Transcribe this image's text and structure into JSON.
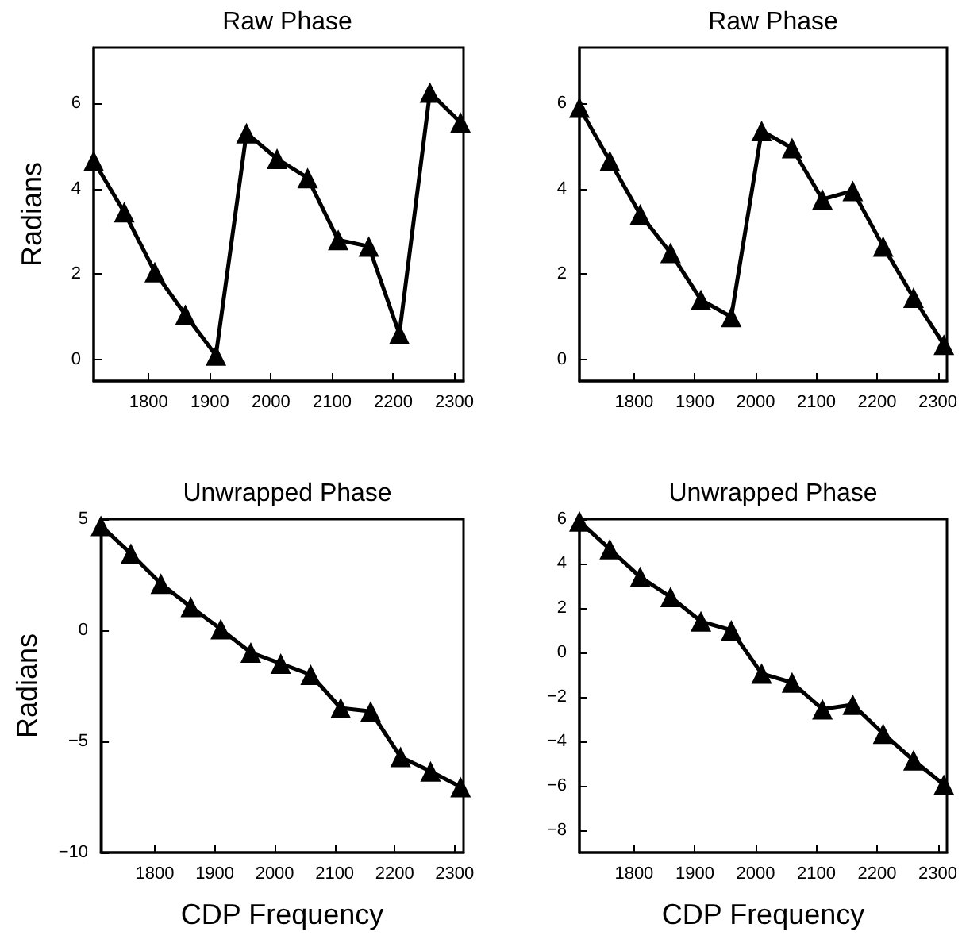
{
  "chart_data": [
    {
      "type": "line",
      "title": "Raw Phase",
      "ylabel": "Radians",
      "x": [
        1710,
        1760,
        1810,
        1860,
        1910,
        1960,
        2010,
        2060,
        2110,
        2160,
        2210,
        2260,
        2310
      ],
      "values": [
        4.65,
        3.45,
        2.05,
        1.05,
        0.1,
        5.3,
        4.7,
        4.25,
        2.8,
        2.65,
        0.6,
        6.25,
        5.55
      ],
      "color": "#000000",
      "marker": "triangle",
      "line_style": "solid",
      "xlim": [
        1710,
        2315
      ],
      "xticks": [
        1800,
        1900,
        2000,
        2100,
        2200,
        2300
      ],
      "ylim": [
        -0.5,
        7.3
      ],
      "yticks": [
        0,
        2,
        4,
        6
      ],
      "grid": false
    },
    {
      "type": "line",
      "title": "Raw Phase",
      "x": [
        1710,
        1760,
        1810,
        1860,
        1910,
        1960,
        2010,
        2060,
        2110,
        2160,
        2210,
        2260,
        2310
      ],
      "values": [
        5.9,
        4.65,
        3.4,
        2.5,
        1.4,
        1.0,
        5.35,
        4.95,
        3.75,
        3.95,
        2.65,
        1.45,
        0.35
      ],
      "color": "#000000",
      "marker": "triangle",
      "line_style": "solid",
      "xlim": [
        1710,
        2315
      ],
      "xticks": [
        1800,
        1900,
        2000,
        2100,
        2200,
        2300
      ],
      "ylim": [
        -0.5,
        7.3
      ],
      "yticks": [
        0,
        2,
        4,
        6
      ],
      "grid": false
    },
    {
      "type": "line",
      "title": "Unwrapped Phase",
      "ylabel": "Radians",
      "xlabel": "CDP Frequency",
      "x": [
        1710,
        1760,
        1810,
        1860,
        1910,
        1960,
        2010,
        2060,
        2110,
        2160,
        2210,
        2260,
        2310
      ],
      "values": [
        4.7,
        3.45,
        2.1,
        1.05,
        0.05,
        -1.0,
        -1.5,
        -2.0,
        -3.5,
        -3.65,
        -5.7,
        -6.35,
        -7.05
      ],
      "color": "#000000",
      "marker": "triangle",
      "line_style": "solid",
      "xlim": [
        1710,
        2315
      ],
      "xticks": [
        1800,
        1900,
        2000,
        2100,
        2200,
        2300
      ],
      "ylim": [
        -10,
        5
      ],
      "yticks": [
        -10,
        -5,
        0,
        5
      ],
      "grid": false
    },
    {
      "type": "line",
      "title": "Unwrapped Phase",
      "xlabel": "CDP Frequency",
      "x": [
        1710,
        1760,
        1810,
        1860,
        1910,
        1960,
        2010,
        2060,
        2110,
        2160,
        2210,
        2260,
        2310
      ],
      "values": [
        5.9,
        4.65,
        3.4,
        2.5,
        1.4,
        1.0,
        -0.95,
        -1.35,
        -2.55,
        -2.35,
        -3.65,
        -4.85,
        -5.95
      ],
      "color": "#000000",
      "marker": "triangle",
      "line_style": "solid",
      "xlim": [
        1710,
        2315
      ],
      "xticks": [
        1800,
        1900,
        2000,
        2100,
        2200,
        2300
      ],
      "ylim": [
        -9,
        6
      ],
      "yticks": [
        -8,
        -6,
        -4,
        -2,
        0,
        2,
        4,
        6
      ],
      "grid": false
    }
  ]
}
